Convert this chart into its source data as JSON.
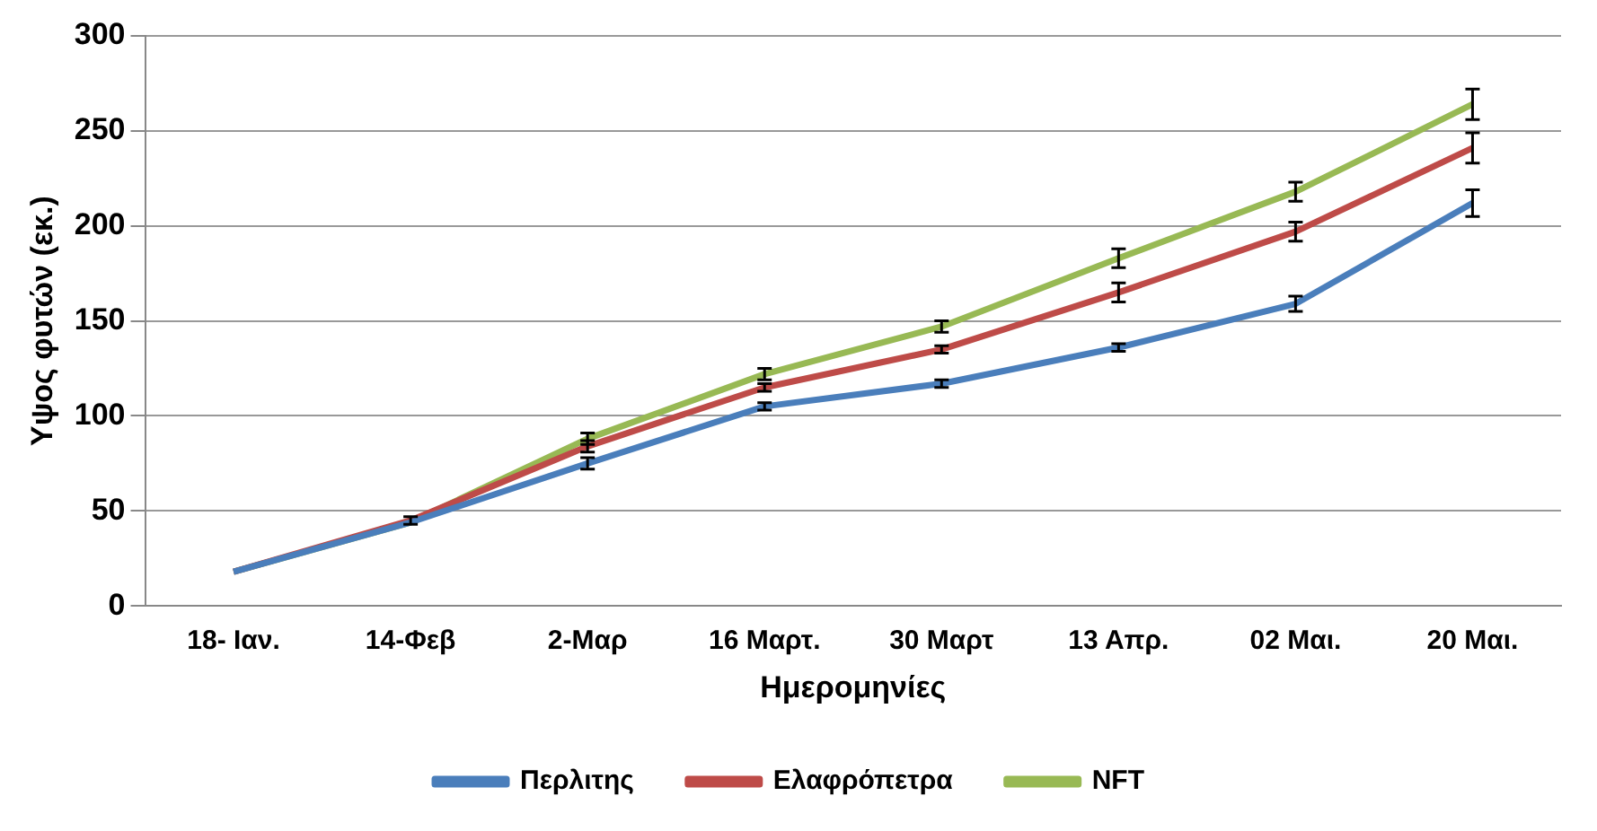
{
  "chart_data": {
    "type": "line",
    "xlabel": "Ημερομηνίες",
    "ylabel": "Υψος φυτών (εκ.)",
    "categories": [
      "18- Ιαν.",
      "14-Φεβ",
      "2-Μαρ",
      "16 Μαρτ.",
      "30 Μαρτ",
      "13 Απρ.",
      "02 Μαι.",
      "20 Μαι."
    ],
    "series": [
      {
        "name": "Περλιτης",
        "color": "#4a7ebb",
        "values": [
          18,
          44,
          75,
          105,
          117,
          136,
          159,
          212
        ],
        "errors": [
          null,
          null,
          3,
          2,
          2,
          2,
          4,
          7
        ]
      },
      {
        "name": "Ελαφρόπετρα",
        "color": "#be4b48",
        "values": [
          18,
          45,
          84,
          115,
          135,
          165,
          197,
          241
        ],
        "errors": [
          null,
          2,
          3,
          2,
          2,
          5,
          5,
          8
        ]
      },
      {
        "name": "NFT",
        "color": "#98b954",
        "values": [
          18,
          44,
          88,
          122,
          147,
          183,
          218,
          264
        ],
        "errors": [
          null,
          null,
          3,
          3,
          3,
          5,
          5,
          8
        ]
      }
    ],
    "ylim": [
      0,
      300
    ],
    "yticks": [
      0,
      50,
      100,
      150,
      200,
      250,
      300
    ],
    "grid": "y",
    "legend": "bottom",
    "line_style": "solid"
  }
}
